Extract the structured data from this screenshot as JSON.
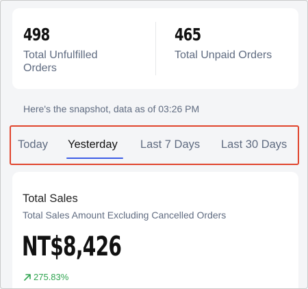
{
  "summary": {
    "unfulfilled": {
      "value": "498",
      "label_line1": "Total Unfulfilled",
      "label_line2": "Orders"
    },
    "unpaid": {
      "value": "465",
      "label": "Total Unpaid Orders"
    }
  },
  "snapshot_text": "Here's the snapshot, data as of 03:26 PM",
  "tabs": [
    {
      "label": "Today",
      "active": false
    },
    {
      "label": "Yesterday",
      "active": true
    },
    {
      "label": "Last 7 Days",
      "active": false
    },
    {
      "label": "Last 30 Days",
      "active": false
    }
  ],
  "sales": {
    "title": "Total Sales",
    "subtitle": "Total Sales Amount Excluding Cancelled Orders",
    "amount": "NT$8,426",
    "growth": "275.83%",
    "growth_icon": "trend-up-arrow-icon"
  },
  "colors": {
    "accent": "#3c5ce6",
    "highlight": "#e0432b",
    "positive": "#2ea44f",
    "muted_text": "#5f6b80"
  }
}
